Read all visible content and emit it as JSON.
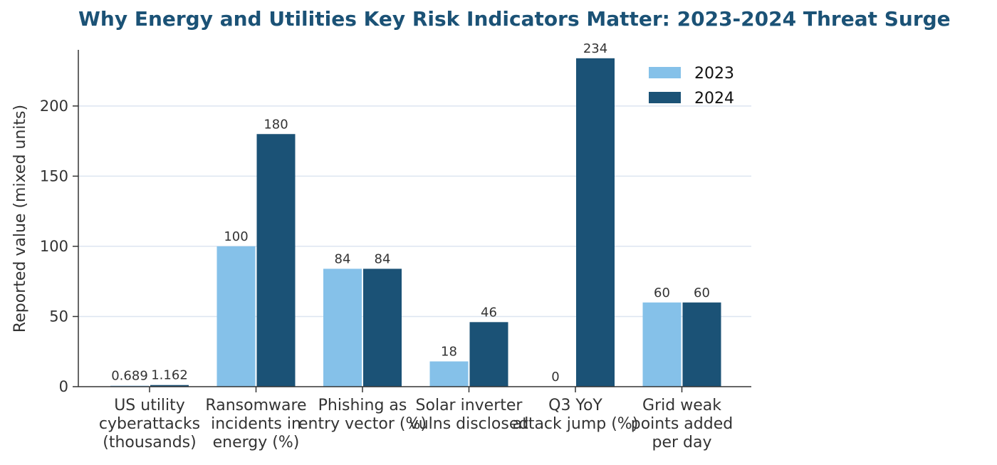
{
  "chart_data": {
    "type": "bar",
    "title": "Why Energy and Utilities Key Risk Indicators Matter: 2023-2024 Threat Surge",
    "ylabel": "Reported value (mixed units)",
    "xlabel": "",
    "ylim": [
      0,
      240
    ],
    "yticks": [
      0,
      50,
      100,
      150,
      200
    ],
    "grid": "horizontal",
    "legend_position": "top-right",
    "categories": [
      [
        "US utility",
        "cyberattacks",
        "(thousands)"
      ],
      [
        "Ransomware",
        "incidents in",
        "energy (%)"
      ],
      [
        "Phishing as",
        "entry vector (%)"
      ],
      [
        "Solar inverter",
        "vulns disclosed"
      ],
      [
        "Q3 YoY",
        "attack jump (%)"
      ],
      [
        "Grid weak",
        "points added",
        "per day"
      ]
    ],
    "series": [
      {
        "name": "2023",
        "color": "#85c1e9",
        "values": [
          0.689,
          100,
          84,
          18,
          0,
          60
        ],
        "labels": [
          "0.689",
          "100",
          "84",
          "18",
          "0",
          "60"
        ]
      },
      {
        "name": "2024",
        "color": "#1b5276",
        "values": [
          1.162,
          180,
          84,
          46,
          234,
          60
        ],
        "labels": [
          "1.162",
          "180",
          "84",
          "46",
          "234",
          "60"
        ]
      }
    ]
  }
}
